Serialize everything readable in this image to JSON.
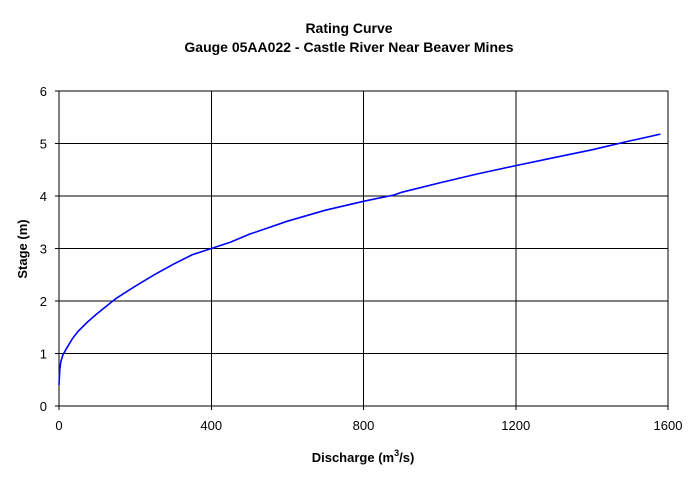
{
  "chart_data": {
    "type": "line",
    "title": "Rating Curve",
    "subtitle": "Gauge 05AA022 - Castle River Near Beaver Mines",
    "xlabel": "Discharge (m",
    "xlabel_sup": "3",
    "xlabel_suffix": "/s)",
    "ylabel": "Stage (m)",
    "xlim": [
      0,
      1600
    ],
    "ylim": [
      0,
      6
    ],
    "xticks": [
      0,
      400,
      800,
      1200,
      1600
    ],
    "yticks": [
      0,
      1,
      2,
      3,
      4,
      5,
      6
    ],
    "grid": true,
    "legend": "none",
    "series": [
      {
        "color": "#0000ff",
        "x": [
          0,
          2,
          5,
          10,
          20,
          35,
          50,
          75,
          100,
          150,
          200,
          250,
          300,
          350,
          400,
          450,
          500,
          600,
          700,
          800,
          880,
          900,
          1000,
          1100,
          1200,
          1300,
          1400,
          1500,
          1580
        ],
        "y": [
          0.4,
          0.7,
          0.85,
          0.97,
          1.1,
          1.28,
          1.42,
          1.6,
          1.76,
          2.05,
          2.28,
          2.5,
          2.7,
          2.88,
          3.0,
          3.12,
          3.27,
          3.52,
          3.73,
          3.9,
          4.02,
          4.07,
          4.25,
          4.42,
          4.58,
          4.73,
          4.88,
          5.05,
          5.18
        ]
      }
    ]
  }
}
